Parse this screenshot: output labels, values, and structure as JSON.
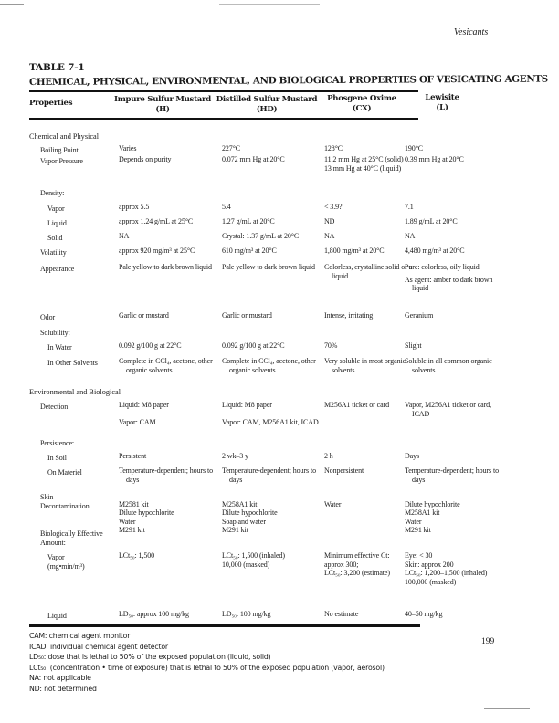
{
  "running_head": "Vesicants",
  "table_label": "TABLE 7-1",
  "table_title": "CHEMICAL, PHYSICAL, ENVIRONMENTAL, AND BIOLOGICAL PROPERTIES OF VESICATING AGENTS",
  "columns": [
    {
      "name": "Properties",
      "abbr": ""
    },
    {
      "name": "Impure Sulfur Mustard",
      "abbr": "(H)"
    },
    {
      "name": "Distilled Sulfur Mustard",
      "abbr": "(HD)"
    },
    {
      "name": "Phosgene Oxime",
      "abbr": "(CX)"
    },
    {
      "name": "Lewisite",
      "abbr": "(L)"
    }
  ],
  "rows": [
    {
      "type": "section",
      "label": "Chemical and Physical"
    },
    {
      "label": "Boiling Point",
      "indent": 1,
      "cells": [
        "Varies",
        "227°C",
        "128°C",
        "190°C"
      ]
    },
    {
      "label": "Vapor Pressure",
      "indent": 1,
      "cells": [
        "Depends on purity",
        "0.072 mm Hg at 20°C",
        "11.2 mm Hg at 25°C (solid)\n13 mm Hg at 40°C (liquid)",
        "0.39 mm Hg at 20°C"
      ]
    },
    {
      "label": "Density:",
      "indent": 1,
      "cells": [
        "",
        "",
        "",
        ""
      ]
    },
    {
      "label": "Vapor",
      "indent": 2,
      "cells": [
        "approx 5.5",
        "5.4",
        "< 3.9?",
        "7.1"
      ]
    },
    {
      "label": "Liquid",
      "indent": 2,
      "cells": [
        "approx 1.24 g/mL at 25°C",
        "1.27 g/mL at 20°C",
        "ND",
        "1.89 g/mL at 20°C"
      ]
    },
    {
      "label": "Solid",
      "indent": 2,
      "cells": [
        "NA",
        "Crystal: 1.37 g/mL at 20°C",
        "NA",
        "NA"
      ]
    },
    {
      "label": "Volatility",
      "indent": 1,
      "cells": [
        "approx 920 mg/m³ at 25°C",
        "610 mg/m³ at 20°C",
        "1,800 mg/m³ at 20°C",
        "4,480 mg/m³ at 20°C"
      ]
    },
    {
      "label": "Appearance",
      "indent": 1,
      "cells": [
        "Pale yellow to dark brown liquid",
        "Pale yellow to dark brown liquid",
        "Colorless, crystalline solid or a liquid",
        "Pure: colorless, oily liquid|As agent: amber to dark brown liquid"
      ]
    },
    {
      "label": "Odor",
      "indent": 1,
      "cells": [
        "Garlic or mustard",
        "Garlic or mustard",
        "Intense, irritating",
        "Geranium"
      ]
    },
    {
      "label": "Solubility:",
      "indent": 1,
      "cells": [
        "",
        "",
        "",
        ""
      ]
    },
    {
      "label": "In Water",
      "indent": 2,
      "cells": [
        "0.092 g/100 g at 22°C",
        "0.092 g/100 g at 22°C",
        "70%",
        "Slight"
      ]
    },
    {
      "label": "In Other Solvents",
      "indent": 2,
      "cells": [
        "Complete in CCl₄, acetone, other organic solvents",
        "Complete in CCl₄, acetone, other organic solvents",
        "Very soluble in most organic solvents",
        "Soluble in all common organic solvents"
      ]
    },
    {
      "type": "section",
      "label": "Environmental and Biological"
    },
    {
      "label": "Detection",
      "indent": 1,
      "cells": [
        "Liquid: M8 paper",
        "Liquid: M8 paper",
        "M256A1 ticket or card",
        "Vapor, M256A1 ticket or card, ICAD"
      ]
    },
    {
      "label": "",
      "indent": 1,
      "cells": [
        "Vapor: CAM",
        "Vapor: CAM, M256A1 kit, ICAD",
        "",
        ""
      ]
    },
    {
      "label": "Persistence:",
      "indent": 1,
      "cells": [
        "",
        "",
        "",
        ""
      ]
    },
    {
      "label": "In Soil",
      "indent": 2,
      "cells": [
        "Persistent",
        "2 wk–3 y",
        "2 h",
        "Days"
      ]
    },
    {
      "label": "On Materiel",
      "indent": 2,
      "cells": [
        "Temperature-dependent; hours to days",
        "Temperature-dependent; hours to days",
        "Nonpersistent",
        "Temperature-dependent; hours to days"
      ]
    },
    {
      "label": "Skin\n  Decontamination",
      "indent": 1,
      "cells": [
        "\nM2581 kit\nDilute hypochlorite\nWater\nM291 kit",
        "\nM258A1 kit\nDilute hypochlorite\nSoap and water\nM291 kit",
        "\nWater",
        "\nDilute hypochlorite\nM258A1 kit\nWater\nM291 kit"
      ]
    },
    {
      "label": "Biologically Effective\n  Amount:",
      "indent": 1,
      "cells": [
        "",
        "",
        "",
        ""
      ]
    },
    {
      "label": "Vapor\n  (mg•min/m³)",
      "indent": 2,
      "cells": [
        "LCt₅₀: 1,500",
        "LCt₅₀: 1,500 (inhaled)\n            10,000 (masked)",
        "Minimum effective Ct:\n   approx 300;\nLCt₅₀: 3,200 (estimate)",
        "Eye: < 30\nSkin: approx 200\nLCt₅₀: 1,200–1,500 (inhaled)\n            100,000 (masked)"
      ]
    },
    {
      "label": "Liquid",
      "indent": 2,
      "cells": [
        "LD₅₀: approx 100 mg/kg",
        "LD₅₀: 100 mg/kg",
        "No estimate",
        "40–50 mg/kg"
      ]
    }
  ],
  "footnotes": [
    "CAM: chemical agent monitor",
    "ICAD: individual chemical agent detector",
    "LD₅₀: dose that is lethal to 50% of the exposed population (liquid, solid)",
    "LCt₅₀: (concentration • time of exposure) that is lethal to 50% of the exposed population (vapor, aerosol)",
    "NA: not applicable",
    "ND: not determined"
  ],
  "page_number": "199"
}
